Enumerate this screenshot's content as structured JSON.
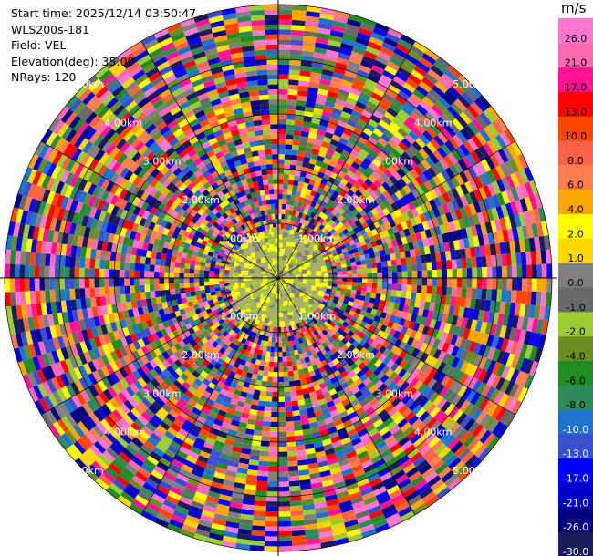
{
  "info": {
    "start_time": "Start time: 2025/12/14 03:50:47",
    "instrument": "WLS200s-181",
    "field": "Field: VEL",
    "elevation": "Elevation(deg): 35.00",
    "nrays": "NRays: 120"
  },
  "chart_data": {
    "type": "ppi-polar",
    "field": "VEL",
    "nrays": 120,
    "n_gates": 45,
    "max_range_km": 5.0,
    "range_ring_labels": [
      "1.00km",
      "2.00km",
      "3.00km",
      "4.00km",
      "5.00km"
    ],
    "range_ring_km": [
      1,
      2,
      3,
      4,
      5
    ],
    "colorbar": {
      "unit": "m/s",
      "levels": [
        -30.0,
        -26.0,
        -21.0,
        -17.0,
        -13.0,
        -10.0,
        -8.0,
        -6.0,
        -4.0,
        -2.0,
        -1.0,
        0.0,
        1.0,
        2.0,
        4.0,
        6.0,
        8.0,
        10.0,
        13.0,
        17.0,
        21.0,
        26.0
      ],
      "labels": [
        "-30.0",
        "-26.0",
        "-21.0",
        "-17.0",
        "-13.0",
        "-10.0",
        "-8.0",
        "-6.0",
        "-4.0",
        "-2.0",
        "-1.0",
        "0.0",
        "1.0",
        "2.0",
        "4.0",
        "6.0",
        "8.0",
        "10.0",
        "13.0",
        "17.0",
        "21.0",
        "26.0"
      ],
      "colors": [
        "#1a1a5e",
        "#000080",
        "#0000cd",
        "#0000ff",
        "#3a4fd0",
        "#1e73cc",
        "#2e8b57",
        "#228b22",
        "#6b8e23",
        "#9acd32",
        "#696969",
        "#808080",
        "#ffd700",
        "#ffff00",
        "#ffa500",
        "#ff7f50",
        "#ff6347",
        "#ff4500",
        "#ff0000",
        "#ff1493",
        "#ff69b4",
        "#ff77d0"
      ]
    }
  }
}
